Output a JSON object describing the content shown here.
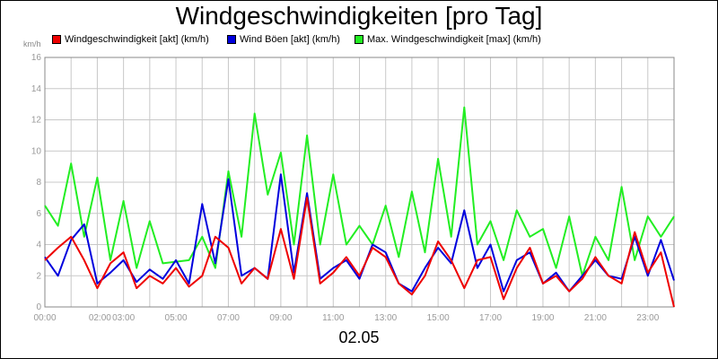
{
  "chart_data": {
    "type": "line",
    "title": "Windgeschwindigkeiten [pro Tag]",
    "xlabel": "02.05",
    "ylabel": "km/h",
    "ylim": [
      0,
      16
    ],
    "yticks": [
      0,
      2,
      4,
      6,
      8,
      10,
      12,
      14,
      16
    ],
    "xlim": [
      0,
      24
    ],
    "xtick_labels": [
      {
        "x": 0,
        "label": "00:00"
      },
      {
        "x": 2.1,
        "label": "02:00"
      },
      {
        "x": 3,
        "label": "03:00"
      },
      {
        "x": 5,
        "label": "05:00"
      },
      {
        "x": 7,
        "label": "07:00"
      },
      {
        "x": 9,
        "label": "09:00"
      },
      {
        "x": 11,
        "label": "11:00"
      },
      {
        "x": 13,
        "label": "13:00"
      },
      {
        "x": 15,
        "label": "15:00"
      },
      {
        "x": 17,
        "label": "17:00"
      },
      {
        "x": 19,
        "label": "19:00"
      },
      {
        "x": 21,
        "label": "21:00"
      },
      {
        "x": 23,
        "label": "23:00"
      }
    ],
    "grid": true,
    "legend_position": "top-left",
    "x": [
      0.0,
      0.5,
      1.0,
      1.5,
      2.0,
      2.5,
      3.0,
      3.5,
      4.0,
      4.5,
      5.0,
      5.5,
      6.0,
      6.5,
      7.0,
      7.5,
      8.0,
      8.5,
      9.0,
      9.5,
      10.0,
      10.5,
      11.0,
      11.5,
      12.0,
      12.5,
      13.0,
      13.5,
      14.0,
      14.5,
      15.0,
      15.5,
      16.0,
      16.5,
      17.0,
      17.5,
      18.0,
      18.5,
      19.0,
      19.5,
      20.0,
      20.5,
      21.0,
      21.5,
      22.0,
      22.5,
      23.0,
      23.5,
      24.0
    ],
    "series": [
      {
        "name": "Windgeschwindigkeit [akt] (km/h)",
        "color": "#ee0000",
        "values": [
          3.0,
          3.8,
          4.5,
          3.0,
          1.2,
          2.8,
          3.5,
          1.2,
          2.0,
          1.5,
          2.5,
          1.3,
          2.0,
          4.5,
          3.8,
          1.5,
          2.5,
          1.8,
          5.0,
          1.8,
          7.0,
          1.5,
          2.2,
          3.2,
          2.0,
          3.8,
          3.2,
          1.5,
          0.8,
          2.0,
          4.2,
          3.0,
          1.2,
          3.0,
          3.2,
          0.5,
          2.5,
          3.8,
          1.5,
          2.0,
          1.0,
          1.8,
          3.2,
          2.0,
          1.5,
          4.8,
          2.2,
          3.5,
          0.0
        ]
      },
      {
        "name": "Wind Böen [akt] (km/h)",
        "color": "#0000dd",
        "values": [
          3.2,
          2.0,
          4.3,
          5.3,
          1.5,
          2.2,
          3.0,
          1.6,
          2.4,
          1.8,
          3.0,
          1.5,
          6.6,
          2.8,
          8.2,
          2.0,
          2.5,
          1.8,
          8.5,
          2.2,
          7.3,
          1.8,
          2.5,
          3.0,
          1.8,
          4.0,
          3.5,
          1.5,
          1.0,
          2.5,
          3.8,
          2.8,
          6.2,
          2.5,
          4.0,
          1.0,
          3.0,
          3.5,
          1.5,
          2.2,
          1.0,
          2.0,
          3.0,
          2.0,
          1.8,
          4.5,
          2.0,
          4.3,
          1.7
        ]
      },
      {
        "name": "Max. Windgeschwindigkeit [max] (km/h)",
        "color": "#22ee22",
        "values": [
          6.5,
          5.2,
          9.2,
          4.5,
          8.3,
          3.0,
          6.8,
          2.5,
          5.5,
          2.8,
          2.9,
          3.0,
          4.5,
          2.5,
          8.7,
          4.5,
          12.4,
          7.2,
          9.9,
          4.0,
          11.0,
          4.0,
          8.5,
          4.0,
          5.2,
          4.0,
          6.5,
          3.2,
          7.4,
          3.5,
          9.5,
          4.5,
          12.8,
          4.0,
          5.5,
          3.0,
          6.2,
          4.5,
          5.0,
          2.5,
          5.8,
          2.0,
          4.5,
          3.0,
          7.7,
          3.0,
          5.8,
          4.5,
          5.8
        ]
      }
    ]
  }
}
